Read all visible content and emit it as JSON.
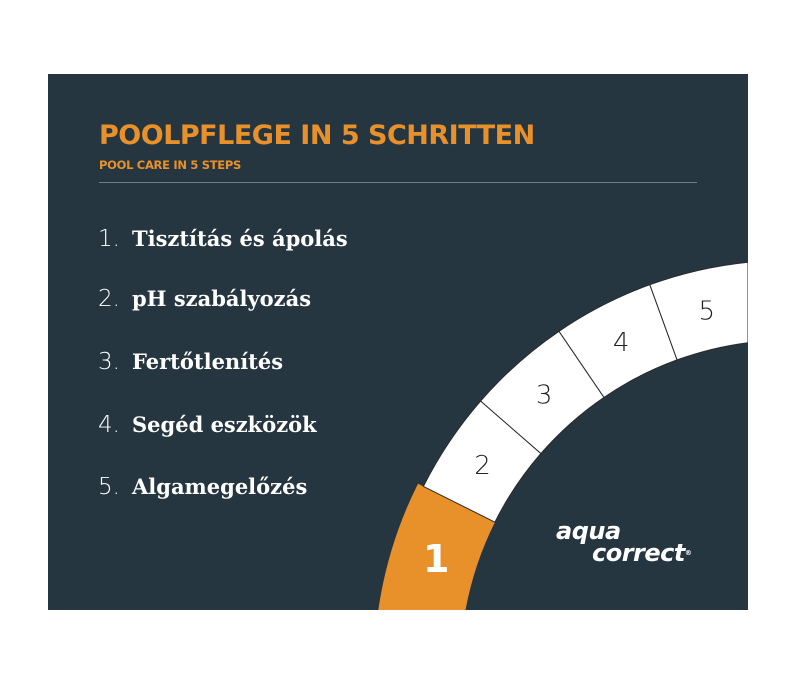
{
  "header": {
    "title": "POOLPFLEGE IN 5 SCHRITTEN",
    "subtitle": "POOL CARE IN 5 STEPS"
  },
  "steps": [
    {
      "number": "1.",
      "label": "Tisztítás és ápolás"
    },
    {
      "number": "2.",
      "label": "pH szabályozás"
    },
    {
      "number": "3.",
      "label": "Fertőtlenítés"
    },
    {
      "number": "4.",
      "label": "Segéd eszközök"
    },
    {
      "number": "5.",
      "label": "Algamegelőzés"
    }
  ],
  "arc": {
    "segments": [
      "1",
      "2",
      "3",
      "4",
      "5"
    ],
    "active": "1"
  },
  "logo": {
    "line1": "aqua",
    "line2": "correct",
    "mark": "®"
  },
  "colors": {
    "background": "#263640",
    "accent": "#e8912b",
    "segment": "#ffffff"
  }
}
